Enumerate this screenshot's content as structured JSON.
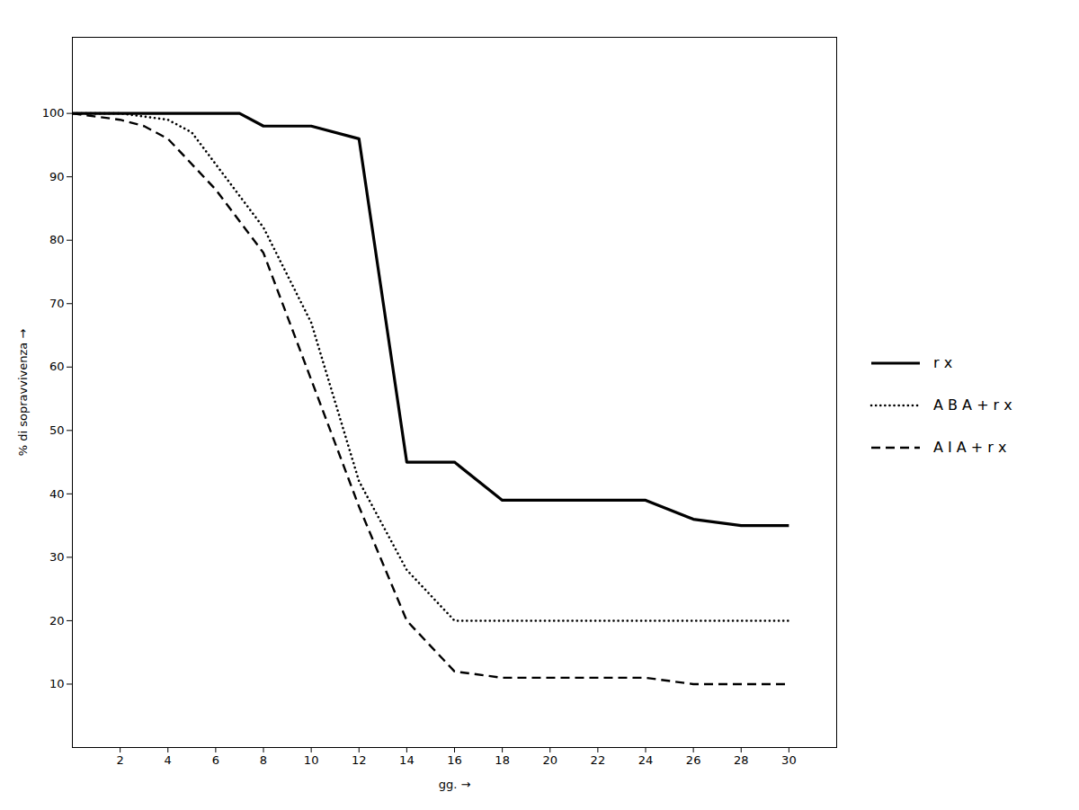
{
  "chart_data": {
    "type": "line",
    "xlabel": "gg.",
    "ylabel": "% di sopravvivenza",
    "xlim": [
      0,
      32
    ],
    "ylim": [
      0,
      112
    ],
    "xticks": [
      2,
      4,
      6,
      8,
      10,
      12,
      14,
      16,
      18,
      20,
      22,
      24,
      26,
      28,
      30
    ],
    "yticks": [
      10,
      20,
      30,
      40,
      50,
      60,
      70,
      80,
      90,
      100
    ],
    "grid": false,
    "legend": "right",
    "series": [
      {
        "name": "r x",
        "color": "#000000",
        "line_style": "solid",
        "x": [
          0,
          2,
          4,
          6,
          7,
          8,
          10,
          12,
          14,
          16,
          18,
          20,
          22,
          24,
          26,
          28,
          30
        ],
        "values": [
          100,
          100,
          100,
          100,
          100,
          98,
          98,
          96,
          45,
          45,
          39,
          39,
          39,
          39,
          36,
          35,
          35
        ]
      },
      {
        "name": "A B A + r x",
        "color": "#000000",
        "line_style": "dotted",
        "x": [
          0,
          2,
          4,
          5,
          6,
          8,
          10,
          12,
          14,
          16,
          18,
          20,
          22,
          24,
          26,
          28,
          30
        ],
        "values": [
          100,
          100,
          99,
          97,
          92,
          82,
          67,
          42,
          28,
          20,
          20,
          20,
          20,
          20,
          20,
          20,
          20
        ]
      },
      {
        "name": "A I A + r x",
        "color": "#000000",
        "line_style": "dashed",
        "x": [
          0,
          2,
          3,
          4,
          6,
          8,
          10,
          12,
          14,
          16,
          18,
          20,
          22,
          24,
          26,
          28,
          30
        ],
        "values": [
          100,
          99,
          98,
          96,
          88,
          78,
          58,
          38,
          20,
          12,
          11,
          11,
          11,
          11,
          10,
          10,
          10
        ]
      }
    ]
  }
}
